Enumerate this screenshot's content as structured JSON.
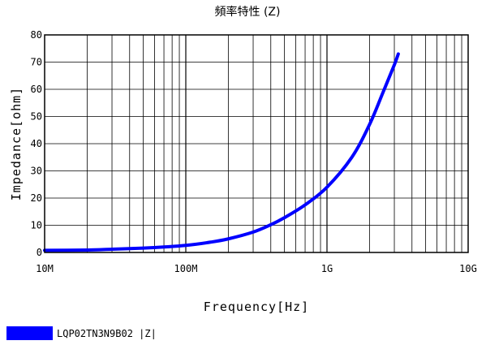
{
  "chart_data": {
    "type": "line",
    "title": "頻率特性 (Z)",
    "xlabel": "Frequency[Hz]",
    "ylabel": "Impedance[ohm]",
    "x_scale": "log",
    "xlim": [
      10000000,
      10000000000
    ],
    "ylim": [
      0,
      80
    ],
    "x_ticks": [
      10000000,
      100000000,
      1000000000,
      10000000000
    ],
    "x_tick_labels": [
      "10M",
      "100M",
      "1G",
      "10G"
    ],
    "y_ticks": [
      0,
      10,
      20,
      30,
      40,
      50,
      60,
      70,
      80
    ],
    "y_tick_labels": [
      "0",
      "10",
      "20",
      "30",
      "40",
      "50",
      "60",
      "70",
      "80"
    ],
    "grid": true,
    "legend_position": "bottom-left",
    "series": [
      {
        "name": "LQP02TN3N9B02 |Z|",
        "color": "#0000ff",
        "x": [
          10000000,
          20000000,
          30000000,
          50000000,
          70000000,
          100000000,
          150000000,
          200000000,
          300000000,
          400000000,
          500000000,
          700000000,
          1000000000,
          1500000000,
          2000000000,
          2500000000,
          3000000000,
          3200000000
        ],
        "y": [
          0.8,
          0.9,
          1.2,
          1.6,
          2.0,
          2.6,
          3.8,
          5.0,
          7.5,
          10.2,
          12.8,
          17.5,
          24.0,
          35.0,
          47.0,
          59.0,
          69.0,
          73.0
        ]
      }
    ]
  }
}
